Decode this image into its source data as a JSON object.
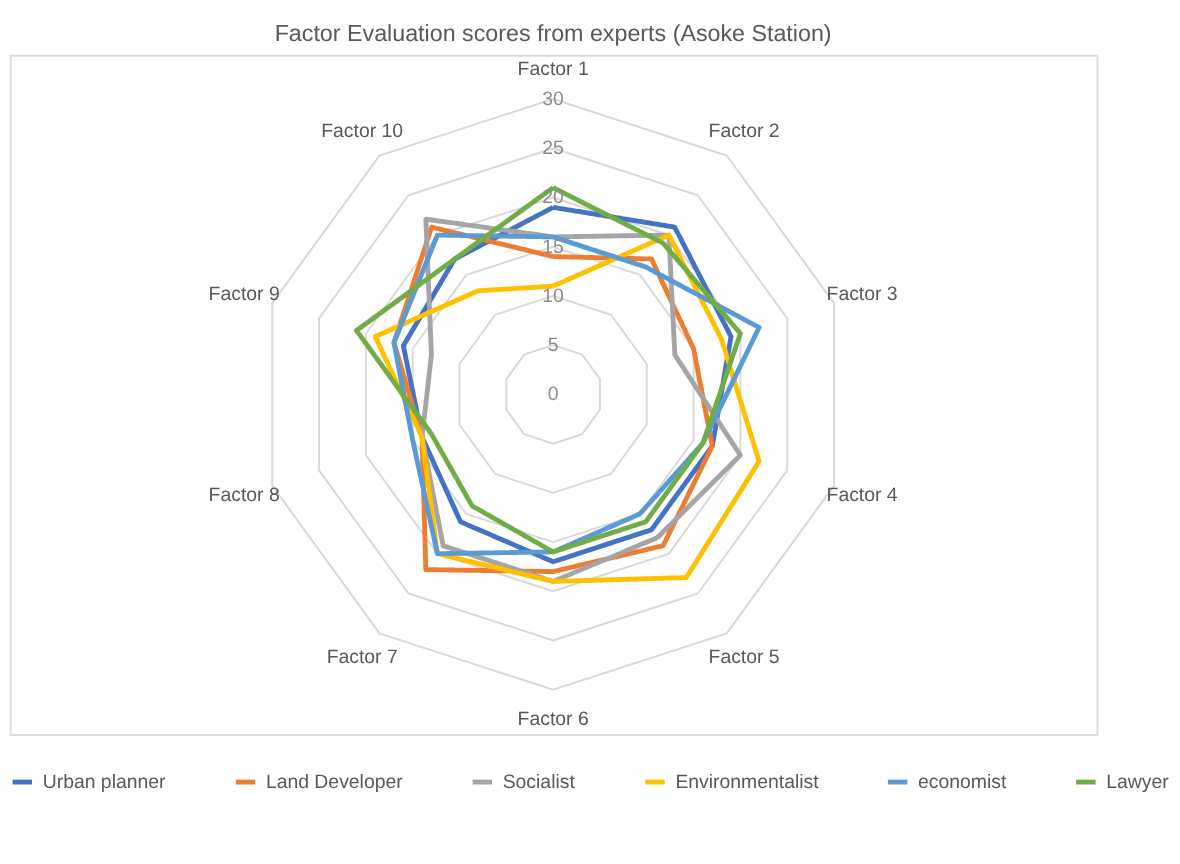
{
  "chart_data": {
    "type": "radar",
    "title": "Factor Evaluation scores from experts (Asoke Station)",
    "categories": [
      "Factor 1",
      "Factor 2",
      "Factor 3",
      "Factor 4",
      "Factor 5",
      "Factor 6",
      "Factor 7",
      "Factor 8",
      "Factor 9",
      "Factor 10"
    ],
    "series": [
      {
        "name": "Urban planner",
        "color": "#4472c4",
        "values": [
          19,
          21,
          19,
          17,
          17,
          17,
          16,
          14,
          16,
          17
        ]
      },
      {
        "name": "Land Developer",
        "color": "#ed7d31",
        "values": [
          14,
          17,
          15,
          17,
          19,
          18,
          22,
          14,
          17,
          21
        ]
      },
      {
        "name": "Socialist",
        "color": "#a5a5a5",
        "values": [
          16,
          20,
          13,
          20,
          18,
          19,
          19,
          14,
          13,
          22
        ]
      },
      {
        "name": "Environmentalist",
        "color": "#ffc000",
        "values": [
          11,
          20,
          18,
          22,
          23,
          19,
          20,
          14,
          19,
          13
        ]
      },
      {
        "name": "economist",
        "color": "#5b9bd5",
        "values": [
          16,
          16,
          22,
          16,
          15,
          16,
          20,
          15,
          17,
          20
        ]
      },
      {
        "name": "Lawyer",
        "color": "#70ad47",
        "values": [
          21,
          19,
          20,
          16,
          16,
          16,
          14,
          13,
          21,
          17
        ]
      }
    ],
    "ylim": [
      0,
      30
    ],
    "yticks": [
      0,
      5,
      10,
      15,
      20,
      25,
      30
    ],
    "grid": true,
    "legend": "bottom",
    "marker": "none",
    "line_style": "solid"
  }
}
